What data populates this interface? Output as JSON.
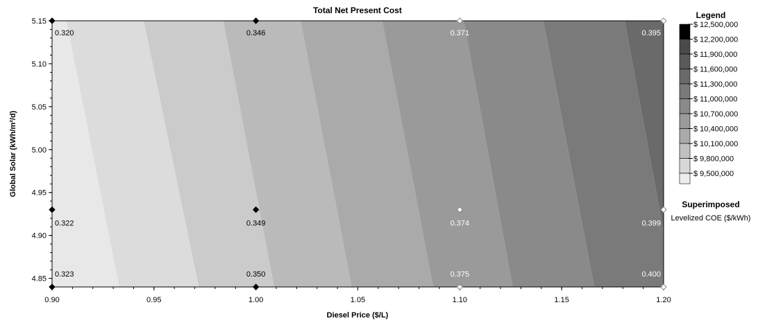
{
  "chart_data": {
    "type": "heatmap",
    "title": "Total Net Present Cost",
    "xlabel": "Diesel Price  ($/L)",
    "ylabel": "Global Solar  (kWh/m²/d)",
    "xlim": [
      0.9,
      1.2
    ],
    "ylim": [
      4.84,
      5.15
    ],
    "x_ticks": [
      "0.90",
      "0.95",
      "1.00",
      "1.05",
      "1.10",
      "1.15",
      "1.20"
    ],
    "y_ticks": [
      "5.15",
      "5.10",
      "5.05",
      "5.00",
      "4.95",
      "4.90",
      "4.85"
    ],
    "contour_bands": [
      {
        "from": 9500000,
        "to": 9800000,
        "color": "#e8e8e8"
      },
      {
        "from": 9800000,
        "to": 10100000,
        "color": "#dcdcdc"
      },
      {
        "from": 10100000,
        "to": 10400000,
        "color": "#cbcbcb"
      },
      {
        "from": 10400000,
        "to": 10700000,
        "color": "#bababa"
      },
      {
        "from": 10700000,
        "to": 11000000,
        "color": "#aaaaaa"
      },
      {
        "from": 11000000,
        "to": 11300000,
        "color": "#9a9a9a"
      },
      {
        "from": 11300000,
        "to": 11600000,
        "color": "#8a8a8a"
      },
      {
        "from": 11600000,
        "to": 11900000,
        "color": "#7a7a7a"
      },
      {
        "from": 11900000,
        "to": 12200000,
        "color": "#6a6a6a"
      },
      {
        "from": 12200000,
        "to": 12500000,
        "color": "#5a5a5a"
      }
    ],
    "legend": {
      "title": "Legend",
      "labels": [
        "$ 12,500,000",
        "$ 12,200,000",
        "$ 11,900,000",
        "$ 11,600,000",
        "$ 11,300,000",
        "$ 11,000,000",
        "$ 10,700,000",
        "$ 10,400,000",
        "$ 10,100,000",
        "$ 9,800,000",
        "$ 9,500,000"
      ],
      "colors": [
        "#000000",
        "#4a4a4a",
        "#5a5a5a",
        "#6a6a6a",
        "#7a7a7a",
        "#8a8a8a",
        "#9a9a9a",
        "#aaaaaa",
        "#c0c0c0",
        "#d8d8d8",
        "#ededed"
      ],
      "placement": "right"
    },
    "superimposed": {
      "title": "Superimposed",
      "subtitle": "Levelized COE ($/kWh)",
      "points": [
        {
          "x": 0.9,
          "y": 5.15,
          "label": "0.320"
        },
        {
          "x": 1.0,
          "y": 5.15,
          "label": "0.346"
        },
        {
          "x": 1.1,
          "y": 5.15,
          "label": "0.371"
        },
        {
          "x": 1.2,
          "y": 5.15,
          "label": "0.395"
        },
        {
          "x": 0.9,
          "y": 4.93,
          "label": "0.322"
        },
        {
          "x": 1.0,
          "y": 4.93,
          "label": "0.349"
        },
        {
          "x": 1.1,
          "y": 4.93,
          "label": "0.374"
        },
        {
          "x": 1.2,
          "y": 4.93,
          "label": "0.399"
        },
        {
          "x": 0.9,
          "y": 4.84,
          "label": "0.323"
        },
        {
          "x": 1.0,
          "y": 4.84,
          "label": "0.350"
        },
        {
          "x": 1.1,
          "y": 4.84,
          "label": "0.375"
        },
        {
          "x": 1.2,
          "y": 4.84,
          "label": "0.400"
        }
      ]
    },
    "band_boundaries_x": {
      "at_y_max": [
        0.907,
        0.945,
        0.984,
        1.022,
        1.062,
        1.102,
        1.141,
        1.181
      ],
      "at_y_min": [
        0.933,
        0.972,
        1.009,
        1.047,
        1.087,
        1.126,
        1.166,
        1.205
      ]
    }
  }
}
